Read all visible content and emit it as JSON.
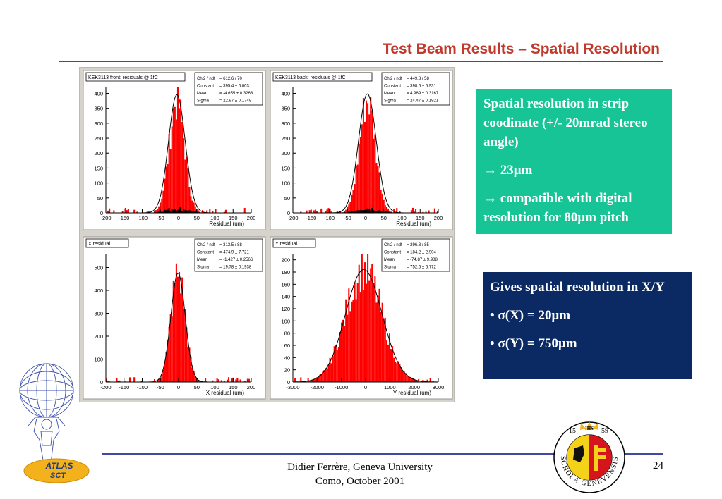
{
  "slide": {
    "title": "Test Beam Results – Spatial Resolution",
    "footer_line1": "Didier Ferrère, Geneva University",
    "footer_line2": "Como, October 2001",
    "page_number": "24"
  },
  "box_green": {
    "text1": "Spatial resolution in strip coodinate (+/- 20mrad stereo angle)",
    "text2": "→ 23μm",
    "text3": "→ compatible with digital resolution for 80μm pitch",
    "color": "#16c495"
  },
  "box_blue": {
    "text1": "Gives spatial resolution in X/Y",
    "text2": "• σ(X) = 20μm",
    "text3": "• σ(Y) = 750μm",
    "color": "#0b2a63"
  },
  "logos": {
    "atlas_line1": "ATLAS",
    "atlas_line2": "SCT",
    "seal_year_left": "15",
    "seal_year_right": "59",
    "seal_ihs": "IHS",
    "seal_text": "SCHOLA GENEVENSIS"
  },
  "colors": {
    "title": "#c0392b",
    "rule": "#3d4aa0",
    "hist_fill": "#ff0000",
    "panel_bg": "#ffffff",
    "frame_bg": "#d6d3cd"
  },
  "chart_data": [
    {
      "type": "bar",
      "title": "KEK3113 front: residuals @ 1fC",
      "xlabel": "Residual (um)",
      "xlim": [
        -200,
        200
      ],
      "ylim": [
        0,
        420
      ],
      "xticks": [
        -200,
        -150,
        -100,
        -50,
        0,
        50,
        100,
        150,
        200
      ],
      "yticks": [
        0,
        50,
        100,
        150,
        200,
        250,
        300,
        350,
        400
      ],
      "stats": [
        {
          "k": "Chi2 / ndf",
          "v": "= 612.6 /  70"
        },
        {
          "k": "Constant",
          "v": "= 395.4  ± 6.003"
        },
        {
          "k": "Mean",
          "v": "= -4.655  ± 0.3268"
        },
        {
          "k": "Sigma",
          "v": "= 22.97  ± 0.1749"
        }
      ],
      "fit": {
        "amplitude": 395.4,
        "mean": -4.655,
        "sigma": 22.97
      },
      "histogram": {
        "bin_width": 4,
        "amplitude": 375,
        "mean": -4.655,
        "sigma": 21
      }
    },
    {
      "type": "bar",
      "title": "KEK3113 back: residuals @ 1fC",
      "xlabel": "Residual (um)",
      "xlim": [
        -200,
        200
      ],
      "ylim": [
        0,
        420
      ],
      "xticks": [
        -200,
        -150,
        -100,
        -50,
        0,
        50,
        100,
        150,
        200
      ],
      "yticks": [
        0,
        50,
        100,
        150,
        200,
        250,
        300,
        350,
        400
      ],
      "stats": [
        {
          "k": "Chi2 / ndf",
          "v": "= 449.8 /  58"
        },
        {
          "k": "Constant",
          "v": "= 398.6  ± 5.931"
        },
        {
          "k": "Mean",
          "v": "= 4.989  ± 0.3167"
        },
        {
          "k": "Sigma",
          "v": "= 24.47  ± 0.1921"
        }
      ],
      "fit": {
        "amplitude": 398.6,
        "mean": 4.989,
        "sigma": 24.47
      },
      "histogram": {
        "bin_width": 4,
        "amplitude": 380,
        "mean": 4.989,
        "sigma": 22
      }
    },
    {
      "type": "bar",
      "title": "X residual",
      "xlabel": "X residual (um)",
      "xlim": [
        -200,
        200
      ],
      "ylim": [
        0,
        560
      ],
      "xticks": [
        -200,
        -150,
        -100,
        -50,
        0,
        50,
        100,
        150,
        200
      ],
      "yticks": [
        0,
        100,
        200,
        300,
        400,
        500
      ],
      "stats": [
        {
          "k": "Chi2 / ndf",
          "v": "= 313.5 /  88"
        },
        {
          "k": "Constant",
          "v": "= 474.9  ± 7.721"
        },
        {
          "k": "Mean",
          "v": "= -1.427  ± 0.2566"
        },
        {
          "k": "Sigma",
          "v": "= 19.78  ± 0.1938"
        }
      ],
      "fit": {
        "amplitude": 474.9,
        "mean": -1.427,
        "sigma": 19.78
      },
      "histogram": {
        "bin_width": 4,
        "amplitude": 475,
        "mean": -1.427,
        "sigma": 19.78
      }
    },
    {
      "type": "bar",
      "title": "Y residual",
      "xlabel": "Y residual (um)",
      "xlim": [
        -3000,
        3000
      ],
      "ylim": [
        0,
        210
      ],
      "xticks": [
        -3000,
        -2000,
        -1000,
        0,
        1000,
        2000,
        3000
      ],
      "yticks": [
        0,
        20,
        40,
        60,
        80,
        100,
        120,
        140,
        160,
        180,
        200
      ],
      "stats": [
        {
          "k": "Chi2 / ndf",
          "v": "= 296.8 /  85"
        },
        {
          "k": "Constant",
          "v": "= 184.2  ± 2.904"
        },
        {
          "k": "Mean",
          "v": "= -74.87  ± 9.988"
        },
        {
          "k": "Sigma",
          "v": "= 752.6  ± 6.772"
        }
      ],
      "fit": {
        "amplitude": 184.2,
        "mean": -74.87,
        "sigma": 752.6
      },
      "histogram": {
        "bin_width": 60,
        "amplitude": 184,
        "mean": -74.87,
        "sigma": 752.6
      }
    }
  ]
}
